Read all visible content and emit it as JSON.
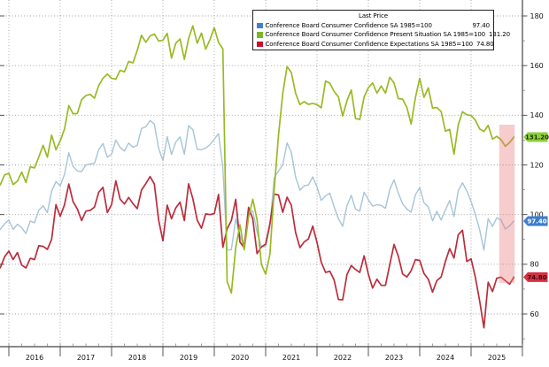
{
  "chart_data": {
    "type": "line",
    "title": "",
    "unit": "index (SA 1985=100)",
    "legend": {
      "title": "Last Price",
      "position": "top-center",
      "items": [
        {
          "label": "Conference Board Consumer Confidence SA 1985=100",
          "value": "97.40",
          "color": "#4080cf"
        },
        {
          "label": "Conference Board Consumer Confidence Present Situation SA 1985=100",
          "value": "131.20",
          "color": "#79b829"
        },
        {
          "label": "Conference Board Consumer Confidence Expectations SA 1985=100",
          "value": "74.80",
          "color": "#c41230"
        }
      ]
    },
    "x_axis": {
      "start": "2015-11",
      "frequency": "monthly",
      "year_labels": [
        "2016",
        "2017",
        "2018",
        "2019",
        "2020",
        "2021",
        "2022",
        "2023",
        "2024",
        "2025"
      ]
    },
    "y_axis": {
      "side": "right",
      "ticks": [
        180,
        160,
        140,
        120,
        100,
        80,
        60
      ],
      "minor_step": 10
    },
    "grid": {
      "horizontal": true,
      "vertical": true,
      "style": "dotted"
    },
    "draw_order": [
      0,
      2,
      1
    ],
    "highlight_band": {
      "start_index": 117,
      "end_index": 120,
      "v_top": 136.2,
      "v_bottom": 72.5,
      "color": "#e87878",
      "opacity": 0.38
    },
    "series": [
      {
        "key": "headline",
        "name": "Conference Board Consumer Confidence SA 1985=100",
        "last": 97.4,
        "value_label": "97.40",
        "line_color": "#a6c5d8",
        "tag_color": "#3c7cd0",
        "tag_text_color": "#ffffff",
        "values": [
          94.0,
          96.3,
          97.8,
          94.0,
          96.1,
          94.7,
          92.4,
          97.4,
          96.7,
          101.8,
          103.5,
          100.8,
          109.4,
          113.3,
          111.6,
          116.1,
          124.9,
          119.4,
          117.6,
          117.3,
          120.0,
          120.4,
          120.6,
          126.2,
          128.6,
          123.1,
          124.3,
          130.0,
          127.0,
          125.6,
          128.8,
          127.1,
          127.9,
          134.7,
          135.3,
          137.9,
          136.4,
          126.6,
          121.7,
          131.4,
          124.2,
          129.2,
          131.3,
          124.3,
          135.8,
          134.2,
          126.3,
          126.1,
          126.8,
          128.2,
          130.4,
          132.6,
          118.8,
          85.7,
          85.9,
          98.3,
          91.7,
          86.3,
          101.3,
          101.4,
          92.9,
          87.1,
          87.1,
          95.2,
          114.9,
          117.5,
          120.0,
          128.9,
          125.1,
          115.2,
          109.8,
          111.6,
          111.9,
          115.2,
          111.1,
          105.7,
          107.6,
          108.6,
          103.2,
          98.4,
          95.3,
          103.6,
          107.8,
          102.2,
          101.4,
          109.0,
          106.0,
          103.4,
          104.0,
          103.7,
          102.5,
          110.1,
          114.0,
          108.7,
          104.3,
          102.2,
          101.0,
          108.0,
          110.9,
          104.8,
          103.1,
          97.5,
          101.3,
          97.8,
          101.9,
          105.6,
          99.2,
          109.6,
          112.8,
          109.5,
          105.3,
          100.1,
          93.9,
          85.7,
          98.4,
          95.2,
          98.7,
          97.8,
          94.2,
          95.5,
          97.4
        ]
      },
      {
        "key": "present-situation",
        "name": "Conference Board Consumer Confidence Present Situation SA 1985=100",
        "last": 131.2,
        "value_label": "131.20",
        "line_color": "#9ab925",
        "tag_color": "#8ece3c",
        "tag_text_color": "#16300a",
        "values": [
          112.0,
          116.0,
          116.6,
          112.1,
          113.5,
          117.1,
          112.9,
          119.3,
          118.8,
          123.2,
          127.9,
          123.1,
          132.0,
          126.1,
          129.7,
          134.4,
          143.9,
          140.6,
          140.7,
          146.3,
          147.9,
          148.4,
          146.9,
          152.0,
          154.9,
          156.6,
          154.9,
          154.5,
          158.1,
          157.5,
          161.7,
          161.1,
          166.1,
          172.2,
          169.4,
          171.9,
          172.7,
          169.9,
          170.2,
          173.0,
          163.0,
          169.0,
          170.7,
          162.5,
          170.9,
          176.0,
          169.0,
          173.1,
          166.6,
          170.5,
          175.3,
          169.3,
          166.7,
          73.0,
          68.4,
          86.7,
          95.9,
          85.8,
          98.9,
          106.2,
          98.0,
          80.0,
          76.0,
          84.0,
          110.1,
          131.9,
          148.7,
          159.6,
          157.2,
          148.9,
          144.3,
          145.5,
          144.4,
          144.8,
          144.3,
          143.0,
          153.8,
          152.9,
          149.6,
          147.4,
          139.7,
          145.8,
          150.2,
          138.7,
          138.3,
          147.4,
          151.1,
          153.0,
          148.9,
          151.8,
          148.9,
          155.3,
          153.0,
          146.7,
          146.5,
          143.1,
          136.5,
          147.2,
          154.9,
          147.2,
          151.0,
          142.9,
          143.1,
          141.5,
          133.6,
          134.3,
          124.3,
          136.1,
          141.4,
          140.2,
          139.9,
          138.1,
          134.5,
          133.5,
          135.9,
          130.4,
          131.5,
          130.2,
          127.5,
          129.0,
          131.2
        ]
      },
      {
        "key": "expectations",
        "name": "Conference Board Consumer Confidence Expectations SA 1985=100",
        "last": 74.8,
        "value_label": "74.80",
        "line_color": "#bb2d3c",
        "tag_color": "#d23344",
        "tag_text_color": "#3d060c",
        "values": [
          78.6,
          83.0,
          85.3,
          81.9,
          84.7,
          79.7,
          78.5,
          82.4,
          81.9,
          87.5,
          87.2,
          86.0,
          90.0,
          104.0,
          99.3,
          103.9,
          112.3,
          105.2,
          102.3,
          97.6,
          101.4,
          101.7,
          103.0,
          109.0,
          111.0,
          100.8,
          104.0,
          113.6,
          106.2,
          104.3,
          106.9,
          104.4,
          102.4,
          109.9,
          112.5,
          115.3,
          112.3,
          97.7,
          89.4,
          103.8,
          98.3,
          102.7,
          105.0,
          97.6,
          112.4,
          106.4,
          97.8,
          94.5,
          100.3,
          100.0,
          100.4,
          108.1,
          86.8,
          94.3,
          97.6,
          106.1,
          88.9,
          86.6,
          102.9,
          98.2,
          84.3,
          87.0,
          88.1,
          96.3,
          108.3,
          107.9,
          100.9,
          107.0,
          103.8,
          92.8,
          86.7,
          89.0,
          90.2,
          95.4,
          88.8,
          80.8,
          76.7,
          77.2,
          73.7,
          65.8,
          65.7,
          75.8,
          79.5,
          77.9,
          76.7,
          83.4,
          76.0,
          70.4,
          74.0,
          71.5,
          71.5,
          79.9,
          88.0,
          83.3,
          76.1,
          74.9,
          77.4,
          81.9,
          81.5,
          76.3,
          74.0,
          68.8,
          73.4,
          74.9,
          81.1,
          86.3,
          82.5,
          91.9,
          93.7,
          81.1,
          82.2,
          74.8,
          65.2,
          54.4,
          72.8,
          69.0,
          74.4,
          74.8,
          73.4,
          72.0,
          74.8
        ]
      }
    ]
  }
}
